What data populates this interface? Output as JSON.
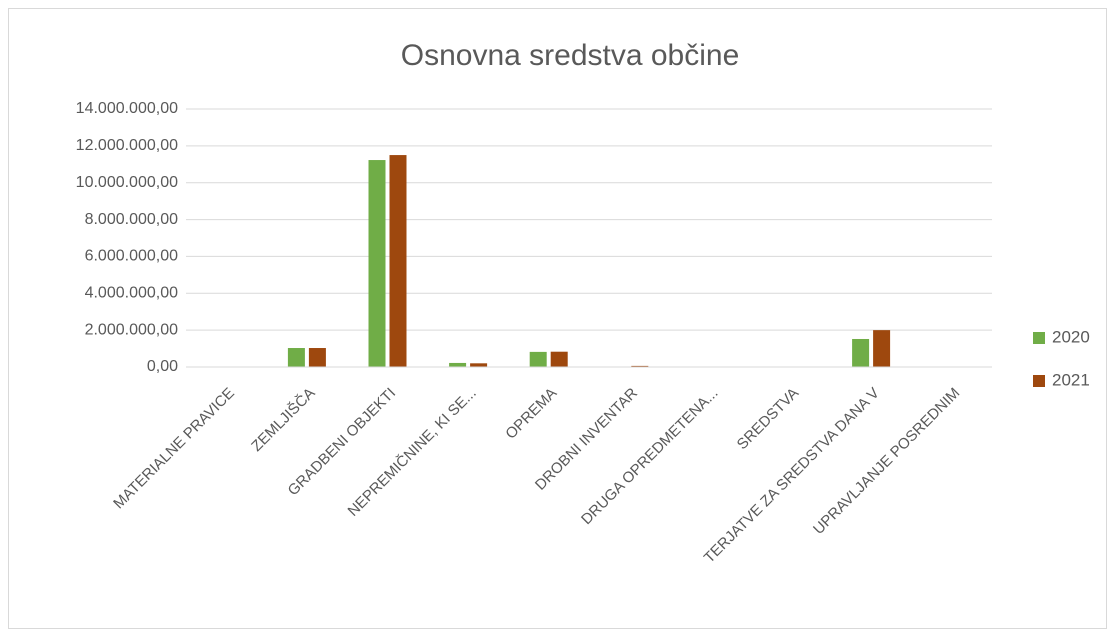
{
  "chart_data": {
    "type": "bar",
    "title": "Osnovna sredstva občine",
    "categories": [
      "MATERIALNE PRAVICE",
      "ZEMLJIŠČA",
      "GRADBENI OBJEKTI",
      "NEPREMIČNINE, KI SE...",
      "OPREMA",
      "DROBNI INVENTAR",
      "DRUGA OPREDMETENA...",
      "SREDSTVA",
      "TERJATVE ZA SREDSTVA DANA V",
      "UPRAVLJANJE POSREDNIM"
    ],
    "series": [
      {
        "name": "2020",
        "color": "#70ad47",
        "values": [
          0,
          1030000,
          11230000,
          220000,
          820000,
          20000,
          0,
          0,
          1520000,
          0
        ]
      },
      {
        "name": "2021",
        "color": "#9e480e",
        "values": [
          0,
          1030000,
          11500000,
          200000,
          830000,
          60000,
          0,
          0,
          2000000,
          0
        ]
      }
    ],
    "ylim": [
      0,
      14000000
    ],
    "yticks": [
      {
        "value": 0,
        "label": "0,00"
      },
      {
        "value": 2000000,
        "label": "2.000.000,00"
      },
      {
        "value": 4000000,
        "label": "4.000.000,00"
      },
      {
        "value": 6000000,
        "label": "6.000.000,00"
      },
      {
        "value": 8000000,
        "label": "8.000.000,00"
      },
      {
        "value": 10000000,
        "label": "10.000.000,00"
      },
      {
        "value": 12000000,
        "label": "12.000.000,00"
      },
      {
        "value": 14000000,
        "label": "14.000.000,00"
      }
    ],
    "grid": true,
    "legend": "right"
  }
}
